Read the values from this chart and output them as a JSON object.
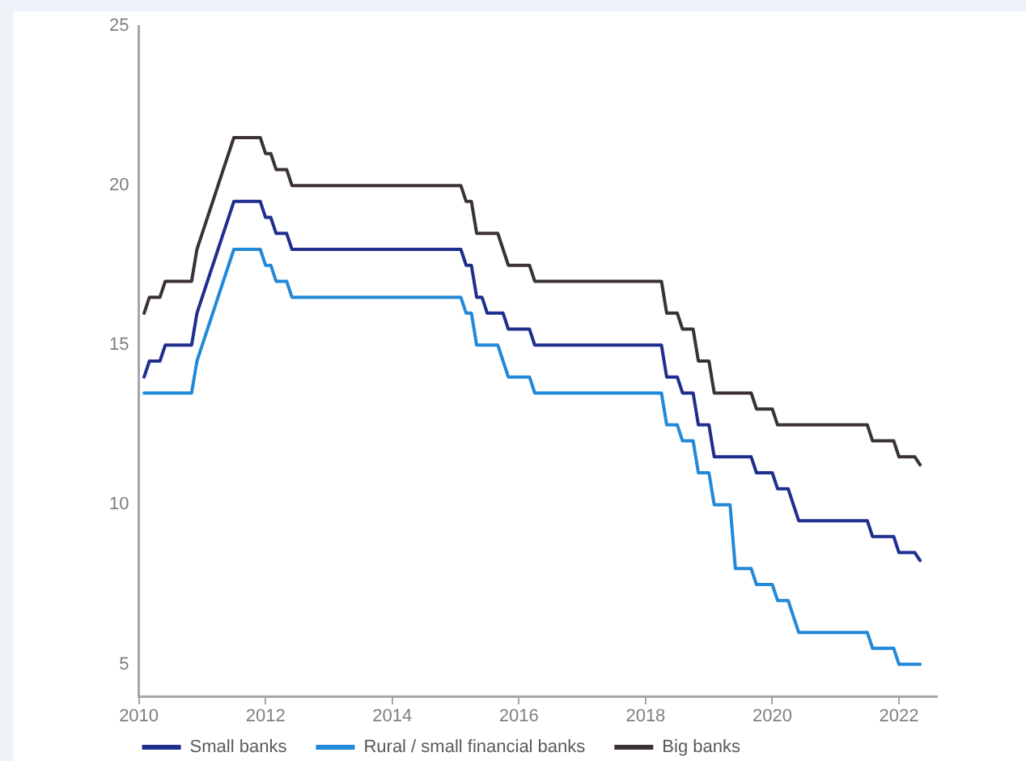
{
  "chart_data": {
    "type": "line",
    "xlim": [
      2010,
      2022.6
    ],
    "xticks": [
      2010,
      2012,
      2014,
      2016,
      2018,
      2020,
      2022
    ],
    "ylim": [
      4,
      25
    ],
    "yticks": [
      5,
      10,
      15,
      20,
      25
    ],
    "legend": "bottom left",
    "marker": "none",
    "series": [
      {
        "name": "Small banks",
        "color": "#1f2f8e",
        "x": [
          2010.083,
          2010.167,
          2010.333,
          2010.417,
          2010.833,
          2010.917,
          2011,
          2011.083,
          2011.167,
          2011.25,
          2011.333,
          2011.417,
          2011.5,
          2011.917,
          2012,
          2012.083,
          2012.167,
          2012.333,
          2012.417,
          2015.083,
          2015.167,
          2015.25,
          2015.333,
          2015.417,
          2015.5,
          2015.75,
          2015.833,
          2016.167,
          2016.25,
          2018.25,
          2018.333,
          2018.5,
          2018.583,
          2018.75,
          2018.833,
          2019,
          2019.083,
          2019.667,
          2019.75,
          2020,
          2020.083,
          2020.25,
          2020.333,
          2020.417,
          2021.5,
          2021.583,
          2021.917,
          2022,
          2022.25,
          2022.333
        ],
        "values": [
          14,
          14.5,
          14.5,
          15,
          15,
          16,
          16.5,
          17,
          17.5,
          18,
          18.5,
          19,
          19.5,
          19.5,
          19,
          19,
          18.5,
          18.5,
          18,
          18,
          17.5,
          17.5,
          16.5,
          16.5,
          16,
          16,
          15.5,
          15.5,
          15,
          15,
          14,
          14,
          13.5,
          13.5,
          12.5,
          12.5,
          11.5,
          11.5,
          11,
          11,
          10.5,
          10.5,
          10,
          9.5,
          9.5,
          9,
          9,
          8.5,
          8.5,
          8.25
        ]
      },
      {
        "name": "Rural / small financial banks",
        "color": "#2288d8",
        "x": [
          2010.083,
          2010.833,
          2010.917,
          2011,
          2011.083,
          2011.167,
          2011.25,
          2011.333,
          2011.417,
          2011.5,
          2011.917,
          2012,
          2012.083,
          2012.167,
          2012.333,
          2012.417,
          2015.083,
          2015.167,
          2015.25,
          2015.333,
          2015.667,
          2015.75,
          2015.833,
          2016.167,
          2016.25,
          2018.25,
          2018.333,
          2018.5,
          2018.583,
          2018.75,
          2018.833,
          2019,
          2019.083,
          2019.333,
          2019.417,
          2019.667,
          2019.75,
          2020,
          2020.083,
          2020.25,
          2020.333,
          2020.417,
          2021.5,
          2021.583,
          2021.917,
          2022,
          2022.333
        ],
        "values": [
          13.5,
          13.5,
          14.5,
          15,
          15.5,
          16,
          16.5,
          17,
          17.5,
          18,
          18,
          17.5,
          17.5,
          17,
          17,
          16.5,
          16.5,
          16,
          16,
          15,
          15,
          14.5,
          14,
          14,
          13.5,
          13.5,
          12.5,
          12.5,
          12,
          12,
          11,
          11,
          10,
          10,
          8,
          8,
          7.5,
          7.5,
          7,
          7,
          6.5,
          6,
          6,
          5.5,
          5.5,
          5,
          5
        ]
      },
      {
        "name": "Big banks",
        "color": "#3b3236",
        "x": [
          2010.083,
          2010.167,
          2010.333,
          2010.417,
          2010.833,
          2010.917,
          2011,
          2011.083,
          2011.167,
          2011.25,
          2011.333,
          2011.417,
          2011.5,
          2011.917,
          2012,
          2012.083,
          2012.167,
          2012.333,
          2012.417,
          2015.083,
          2015.167,
          2015.25,
          2015.333,
          2015.667,
          2015.75,
          2015.833,
          2016.167,
          2016.25,
          2018.25,
          2018.333,
          2018.5,
          2018.583,
          2018.75,
          2018.833,
          2019,
          2019.083,
          2019.667,
          2019.75,
          2020,
          2020.083,
          2021.5,
          2021.583,
          2021.917,
          2022,
          2022.25,
          2022.333
        ],
        "values": [
          16,
          16.5,
          16.5,
          17,
          17,
          18,
          18.5,
          19,
          19.5,
          20,
          20.5,
          21,
          21.5,
          21.5,
          21,
          21,
          20.5,
          20.5,
          20,
          20,
          19.5,
          19.5,
          18.5,
          18.5,
          18,
          17.5,
          17.5,
          17,
          17,
          16,
          16,
          15.5,
          15.5,
          14.5,
          14.5,
          13.5,
          13.5,
          13,
          13,
          12.5,
          12.5,
          12,
          12,
          11.5,
          11.5,
          11.25
        ]
      }
    ]
  }
}
